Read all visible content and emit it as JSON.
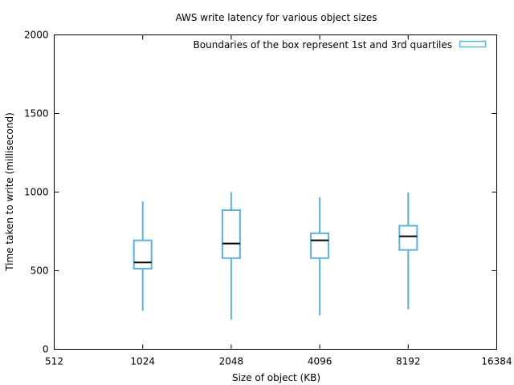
{
  "chart_data": {
    "type": "boxplot",
    "title": "AWS write latency for various object sizes",
    "xlabel": "Size of object (KB)",
    "ylabel": "Time taken to write (millisecond)",
    "x_scale": "log2",
    "xlim": [
      512,
      16384
    ],
    "ylim": [
      0,
      2000
    ],
    "x_ticks": [
      "512",
      "1024",
      "2048",
      "4096",
      "8192",
      "16384"
    ],
    "y_ticks": [
      "0",
      "500",
      "1000",
      "1500",
      "2000"
    ],
    "legend": {
      "label": "Boundaries of the box represent 1st and 3rd quartiles",
      "position": "top-right"
    },
    "series": [
      {
        "boxes": [
          {
            "x": 1024,
            "min": 245,
            "q1": 513,
            "median": 552,
            "q3": 693,
            "max": 940
          },
          {
            "x": 2048,
            "min": 188,
            "q1": 580,
            "median": 673,
            "q3": 885,
            "max": 1000
          },
          {
            "x": 4096,
            "min": 215,
            "q1": 580,
            "median": 693,
            "q3": 738,
            "max": 968
          },
          {
            "x": 8192,
            "min": 255,
            "q1": 632,
            "median": 719,
            "q3": 786,
            "max": 998
          }
        ]
      }
    ],
    "colors": {
      "box": "#56b4e9",
      "median": "#000000",
      "frame": "#000000"
    },
    "grid": false
  }
}
